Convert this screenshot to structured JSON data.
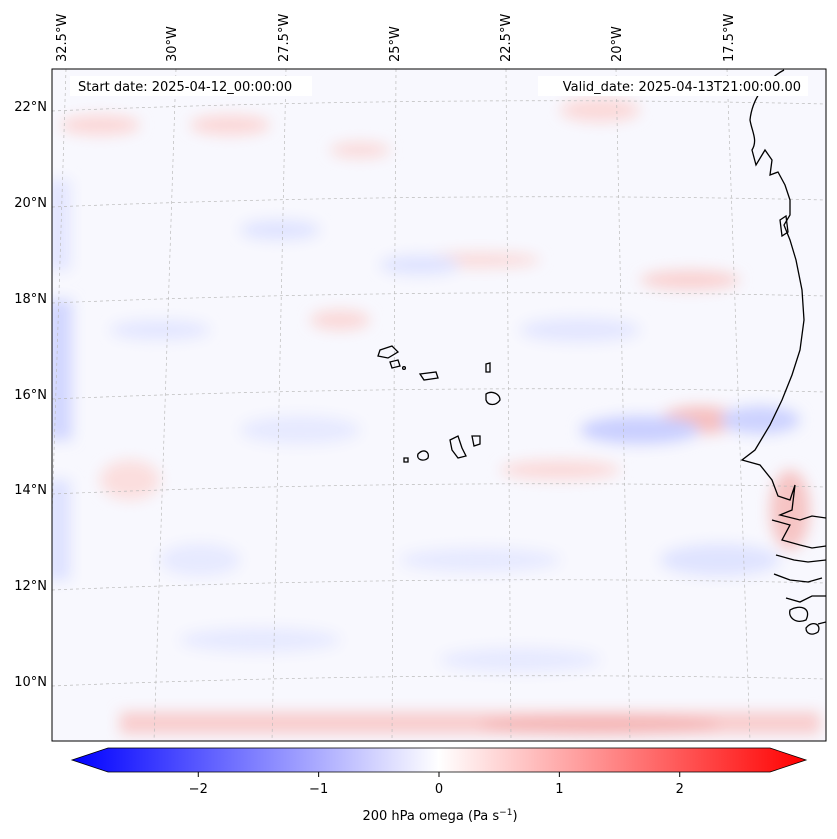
{
  "map": {
    "annotations": {
      "start": "Start date: 2025-04-12_00:00:00",
      "valid": "Valid_date: 2025-04-13T21:00:00.00"
    },
    "lon_labels": [
      "32.5°W",
      "30°W",
      "27.5°W",
      "25°W",
      "22.5°W",
      "20°W",
      "17.5°W"
    ],
    "lat_labels": [
      "22°N",
      "20°N",
      "18°N",
      "16°N",
      "14°N",
      "12°N",
      "10°N"
    ],
    "colorbar": {
      "label": "200 hPa omega (Pa s",
      "label_sup": "−1",
      "label_end": ")",
      "ticks": [
        "−2",
        "−1",
        "0",
        "1",
        "2"
      ],
      "range": [
        -2.75,
        2.75
      ],
      "colors": {
        "min": "#0000ff",
        "mid": "#ffffff",
        "max": "#ff0000"
      }
    },
    "field_style": {
      "background": "#f8f8fe",
      "blue": "#dfe2ff",
      "red": "#fde2e2",
      "coast": "#000000"
    }
  }
}
